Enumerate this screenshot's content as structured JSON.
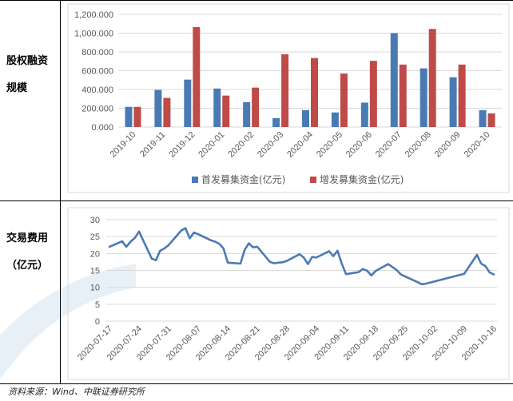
{
  "row_labels": {
    "top_line1": "股权融资",
    "top_line2": "规模",
    "bottom_line1": "交易费用",
    "bottom_line2": "（亿元）"
  },
  "source": "资料来源：Wind、中联证券研究所",
  "colors": {
    "series1": "#4a7ab4",
    "series2": "#be4b48",
    "line": "#4a7ab4",
    "grid": "#d9d9d9",
    "watermark": "#d8e7f3"
  },
  "chart_data": [
    {
      "type": "bar",
      "categories": [
        "2019-10",
        "2019-11",
        "2019-12",
        "2020-01",
        "2020-02",
        "2020-03",
        "2020-04",
        "2020-05",
        "2020-06",
        "2020-07",
        "2020-08",
        "2020-09",
        "2020-10"
      ],
      "series": [
        {
          "name": "首发募集资金(亿元)",
          "values": [
            215,
            395,
            505,
            410,
            265,
            95,
            180,
            155,
            260,
            1000,
            625,
            530,
            180
          ]
        },
        {
          "name": "增发募集资金(亿元)",
          "values": [
            215,
            310,
            1065,
            335,
            420,
            775,
            735,
            570,
            705,
            665,
            1045,
            665,
            145
          ]
        }
      ],
      "ylim": [
        0,
        1200
      ],
      "yticks": [
        "0.000",
        "200.000",
        "400.000",
        "600.000",
        "800.000",
        "1,000.000",
        "1,200.000"
      ],
      "grid": true,
      "legend": "bottom"
    },
    {
      "type": "line",
      "xticks": [
        "2020-07-17",
        "2020-07-24",
        "2020-07-31",
        "2020-08-07",
        "2020-08-14",
        "2020-08-21",
        "2020-08-28",
        "2020-09-04",
        "2020-09-11",
        "2020-09-18",
        "2020-09-25",
        "2020-10-02",
        "2020-10-09",
        "2020-10-16"
      ],
      "x": [
        "2020-07-17",
        "2020-07-20",
        "2020-07-21",
        "2020-07-22",
        "2020-07-23",
        "2020-07-24",
        "2020-07-27",
        "2020-07-28",
        "2020-07-29",
        "2020-07-30",
        "2020-07-31",
        "2020-08-03",
        "2020-08-04",
        "2020-08-05",
        "2020-08-06",
        "2020-08-07",
        "2020-08-10",
        "2020-08-11",
        "2020-08-12",
        "2020-08-13",
        "2020-08-14",
        "2020-08-17",
        "2020-08-18",
        "2020-08-19",
        "2020-08-20",
        "2020-08-21",
        "2020-08-24",
        "2020-08-25",
        "2020-08-26",
        "2020-08-27",
        "2020-08-28",
        "2020-08-31",
        "2020-09-01",
        "2020-09-02",
        "2020-09-03",
        "2020-09-04",
        "2020-09-07",
        "2020-09-08",
        "2020-09-09",
        "2020-09-10",
        "2020-09-11",
        "2020-09-14",
        "2020-09-15",
        "2020-09-16",
        "2020-09-17",
        "2020-09-18",
        "2020-09-21",
        "2020-09-22",
        "2020-09-23",
        "2020-09-24",
        "2020-09-25",
        "2020-09-28",
        "2020-09-29",
        "2020-09-30",
        "2020-10-09",
        "2020-10-12",
        "2020-10-13",
        "2020-10-14",
        "2020-10-15",
        "2020-10-16"
      ],
      "series": [
        {
          "name": "",
          "values": [
            22.0,
            23.6,
            22.0,
            23.5,
            24.6,
            26.5,
            18.5,
            18.0,
            20.8,
            21.5,
            22.5,
            26.8,
            27.5,
            24.5,
            26.2,
            25.7,
            23.9,
            23.5,
            22.9,
            21.5,
            17.3,
            17.0,
            21.0,
            23.0,
            21.8,
            22.0,
            17.5,
            17.1,
            17.3,
            17.4,
            17.8,
            19.8,
            18.8,
            16.9,
            19.0,
            18.8,
            20.7,
            19.2,
            20.8,
            17.0,
            13.9,
            14.5,
            15.4,
            14.9,
            13.5,
            14.8,
            16.9,
            16.0,
            15.1,
            13.8,
            13.2,
            11.5,
            10.9,
            11.1,
            14.0,
            19.6,
            17.0,
            16.3,
            14.4,
            13.8
          ]
        }
      ],
      "ylim": [
        0,
        30
      ],
      "yticks": [
        "0",
        "5",
        "10",
        "15",
        "20",
        "25",
        "30"
      ],
      "grid": true
    }
  ]
}
